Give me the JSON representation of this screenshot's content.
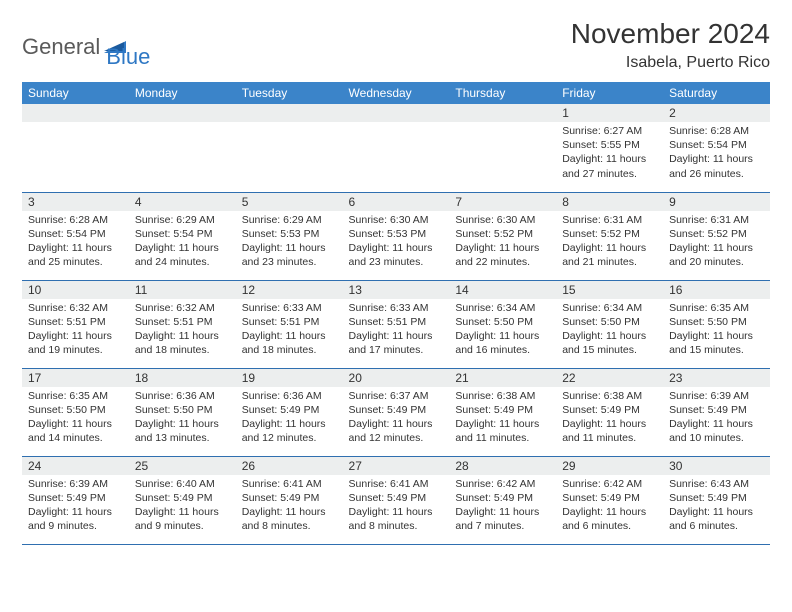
{
  "logo": {
    "part1": "General",
    "part2": "Blue"
  },
  "title": "November 2024",
  "location": "Isabela, Puerto Rico",
  "colors": {
    "header_bg": "#3b84c9",
    "row_divider": "#2f6fb0",
    "daynum_bg": "#eceeee",
    "logo_gray": "#5a5a5a",
    "logo_blue": "#2f78c4"
  },
  "weekdays": [
    "Sunday",
    "Monday",
    "Tuesday",
    "Wednesday",
    "Thursday",
    "Friday",
    "Saturday"
  ],
  "weeks": [
    [
      {
        "day": "",
        "empty": true
      },
      {
        "day": "",
        "empty": true
      },
      {
        "day": "",
        "empty": true
      },
      {
        "day": "",
        "empty": true
      },
      {
        "day": "",
        "empty": true
      },
      {
        "day": "1",
        "sunrise": "Sunrise: 6:27 AM",
        "sunset": "Sunset: 5:55 PM",
        "daylight1": "Daylight: 11 hours",
        "daylight2": "and 27 minutes."
      },
      {
        "day": "2",
        "sunrise": "Sunrise: 6:28 AM",
        "sunset": "Sunset: 5:54 PM",
        "daylight1": "Daylight: 11 hours",
        "daylight2": "and 26 minutes."
      }
    ],
    [
      {
        "day": "3",
        "sunrise": "Sunrise: 6:28 AM",
        "sunset": "Sunset: 5:54 PM",
        "daylight1": "Daylight: 11 hours",
        "daylight2": "and 25 minutes."
      },
      {
        "day": "4",
        "sunrise": "Sunrise: 6:29 AM",
        "sunset": "Sunset: 5:54 PM",
        "daylight1": "Daylight: 11 hours",
        "daylight2": "and 24 minutes."
      },
      {
        "day": "5",
        "sunrise": "Sunrise: 6:29 AM",
        "sunset": "Sunset: 5:53 PM",
        "daylight1": "Daylight: 11 hours",
        "daylight2": "and 23 minutes."
      },
      {
        "day": "6",
        "sunrise": "Sunrise: 6:30 AM",
        "sunset": "Sunset: 5:53 PM",
        "daylight1": "Daylight: 11 hours",
        "daylight2": "and 23 minutes."
      },
      {
        "day": "7",
        "sunrise": "Sunrise: 6:30 AM",
        "sunset": "Sunset: 5:52 PM",
        "daylight1": "Daylight: 11 hours",
        "daylight2": "and 22 minutes."
      },
      {
        "day": "8",
        "sunrise": "Sunrise: 6:31 AM",
        "sunset": "Sunset: 5:52 PM",
        "daylight1": "Daylight: 11 hours",
        "daylight2": "and 21 minutes."
      },
      {
        "day": "9",
        "sunrise": "Sunrise: 6:31 AM",
        "sunset": "Sunset: 5:52 PM",
        "daylight1": "Daylight: 11 hours",
        "daylight2": "and 20 minutes."
      }
    ],
    [
      {
        "day": "10",
        "sunrise": "Sunrise: 6:32 AM",
        "sunset": "Sunset: 5:51 PM",
        "daylight1": "Daylight: 11 hours",
        "daylight2": "and 19 minutes."
      },
      {
        "day": "11",
        "sunrise": "Sunrise: 6:32 AM",
        "sunset": "Sunset: 5:51 PM",
        "daylight1": "Daylight: 11 hours",
        "daylight2": "and 18 minutes."
      },
      {
        "day": "12",
        "sunrise": "Sunrise: 6:33 AM",
        "sunset": "Sunset: 5:51 PM",
        "daylight1": "Daylight: 11 hours",
        "daylight2": "and 18 minutes."
      },
      {
        "day": "13",
        "sunrise": "Sunrise: 6:33 AM",
        "sunset": "Sunset: 5:51 PM",
        "daylight1": "Daylight: 11 hours",
        "daylight2": "and 17 minutes."
      },
      {
        "day": "14",
        "sunrise": "Sunrise: 6:34 AM",
        "sunset": "Sunset: 5:50 PM",
        "daylight1": "Daylight: 11 hours",
        "daylight2": "and 16 minutes."
      },
      {
        "day": "15",
        "sunrise": "Sunrise: 6:34 AM",
        "sunset": "Sunset: 5:50 PM",
        "daylight1": "Daylight: 11 hours",
        "daylight2": "and 15 minutes."
      },
      {
        "day": "16",
        "sunrise": "Sunrise: 6:35 AM",
        "sunset": "Sunset: 5:50 PM",
        "daylight1": "Daylight: 11 hours",
        "daylight2": "and 15 minutes."
      }
    ],
    [
      {
        "day": "17",
        "sunrise": "Sunrise: 6:35 AM",
        "sunset": "Sunset: 5:50 PM",
        "daylight1": "Daylight: 11 hours",
        "daylight2": "and 14 minutes."
      },
      {
        "day": "18",
        "sunrise": "Sunrise: 6:36 AM",
        "sunset": "Sunset: 5:50 PM",
        "daylight1": "Daylight: 11 hours",
        "daylight2": "and 13 minutes."
      },
      {
        "day": "19",
        "sunrise": "Sunrise: 6:36 AM",
        "sunset": "Sunset: 5:49 PM",
        "daylight1": "Daylight: 11 hours",
        "daylight2": "and 12 minutes."
      },
      {
        "day": "20",
        "sunrise": "Sunrise: 6:37 AM",
        "sunset": "Sunset: 5:49 PM",
        "daylight1": "Daylight: 11 hours",
        "daylight2": "and 12 minutes."
      },
      {
        "day": "21",
        "sunrise": "Sunrise: 6:38 AM",
        "sunset": "Sunset: 5:49 PM",
        "daylight1": "Daylight: 11 hours",
        "daylight2": "and 11 minutes."
      },
      {
        "day": "22",
        "sunrise": "Sunrise: 6:38 AM",
        "sunset": "Sunset: 5:49 PM",
        "daylight1": "Daylight: 11 hours",
        "daylight2": "and 11 minutes."
      },
      {
        "day": "23",
        "sunrise": "Sunrise: 6:39 AM",
        "sunset": "Sunset: 5:49 PM",
        "daylight1": "Daylight: 11 hours",
        "daylight2": "and 10 minutes."
      }
    ],
    [
      {
        "day": "24",
        "sunrise": "Sunrise: 6:39 AM",
        "sunset": "Sunset: 5:49 PM",
        "daylight1": "Daylight: 11 hours",
        "daylight2": "and 9 minutes."
      },
      {
        "day": "25",
        "sunrise": "Sunrise: 6:40 AM",
        "sunset": "Sunset: 5:49 PM",
        "daylight1": "Daylight: 11 hours",
        "daylight2": "and 9 minutes."
      },
      {
        "day": "26",
        "sunrise": "Sunrise: 6:41 AM",
        "sunset": "Sunset: 5:49 PM",
        "daylight1": "Daylight: 11 hours",
        "daylight2": "and 8 minutes."
      },
      {
        "day": "27",
        "sunrise": "Sunrise: 6:41 AM",
        "sunset": "Sunset: 5:49 PM",
        "daylight1": "Daylight: 11 hours",
        "daylight2": "and 8 minutes."
      },
      {
        "day": "28",
        "sunrise": "Sunrise: 6:42 AM",
        "sunset": "Sunset: 5:49 PM",
        "daylight1": "Daylight: 11 hours",
        "daylight2": "and 7 minutes."
      },
      {
        "day": "29",
        "sunrise": "Sunrise: 6:42 AM",
        "sunset": "Sunset: 5:49 PM",
        "daylight1": "Daylight: 11 hours",
        "daylight2": "and 6 minutes."
      },
      {
        "day": "30",
        "sunrise": "Sunrise: 6:43 AM",
        "sunset": "Sunset: 5:49 PM",
        "daylight1": "Daylight: 11 hours",
        "daylight2": "and 6 minutes."
      }
    ]
  ]
}
